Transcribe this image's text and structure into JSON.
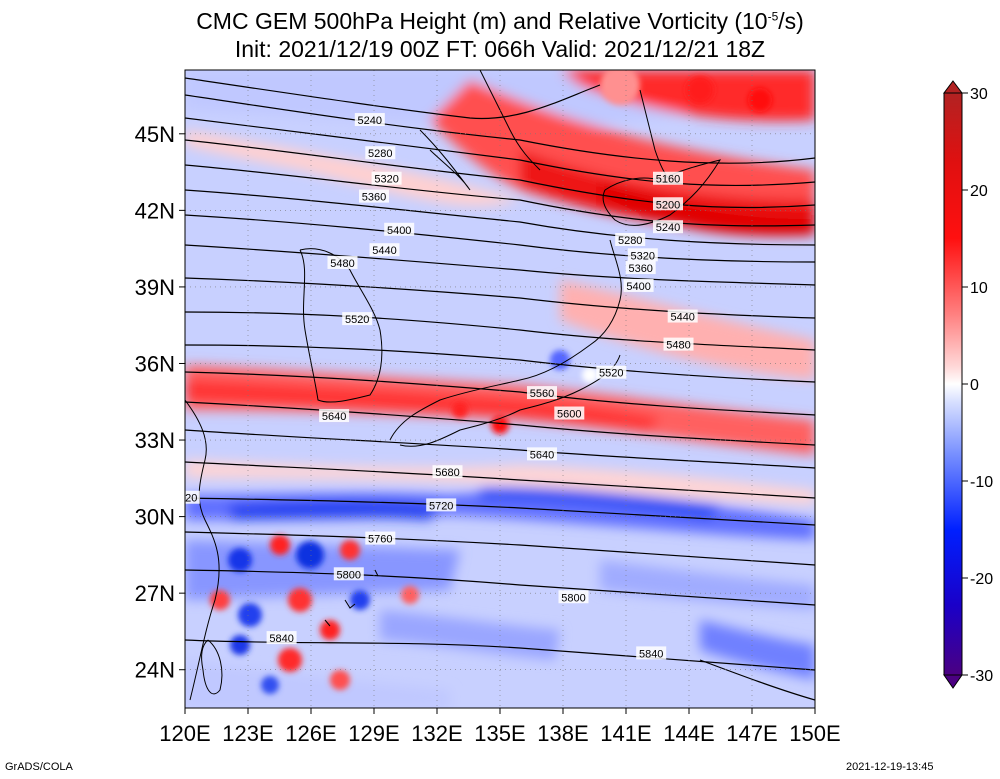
{
  "title": {
    "line1_pre": "CMC GEM 500hPa Height (m) and Relative Vorticity (10",
    "line1_exp": "-5",
    "line1_post": "/s)",
    "line2": "Init: 2021/12/19 00Z  FT: 066h  Valid: 2021/12/21 18Z"
  },
  "axes": {
    "lon_ticks": [
      "120E",
      "123E",
      "126E",
      "129E",
      "132E",
      "135E",
      "138E",
      "141E",
      "144E",
      "147E",
      "150E"
    ],
    "lat_ticks": [
      "45N",
      "42N",
      "39N",
      "36N",
      "33N",
      "30N",
      "27N",
      "24N"
    ],
    "lon_range": [
      120,
      150
    ],
    "lat_range": [
      22.5,
      47.5
    ]
  },
  "colorbar": {
    "ticks": [
      "30",
      "20",
      "10",
      "0",
      "-10",
      "-20",
      "-30"
    ],
    "range": [
      -30,
      30
    ],
    "colors": [
      "#4b0082",
      "#0000cd",
      "#3050ff",
      "#a0b4ff",
      "#ffffff",
      "#ffa0a0",
      "#ff2020",
      "#d20000",
      "#b22222"
    ]
  },
  "contours": {
    "labels": [
      {
        "text": "5240",
        "lon": 128.8,
        "lat": 45.5
      },
      {
        "text": "5280",
        "lon": 129.3,
        "lat": 44.2
      },
      {
        "text": "5320",
        "lon": 129.6,
        "lat": 43.2
      },
      {
        "text": "5360",
        "lon": 129.0,
        "lat": 42.5
      },
      {
        "text": "5400",
        "lon": 130.2,
        "lat": 41.2
      },
      {
        "text": "5440",
        "lon": 129.5,
        "lat": 40.4
      },
      {
        "text": "5480",
        "lon": 127.5,
        "lat": 39.9
      },
      {
        "text": "5520",
        "lon": 128.2,
        "lat": 37.7
      },
      {
        "text": "5160",
        "lon": 143.0,
        "lat": 43.2
      },
      {
        "text": "5200",
        "lon": 143.0,
        "lat": 42.2
      },
      {
        "text": "5240",
        "lon": 143.0,
        "lat": 41.3
      },
      {
        "text": "5280",
        "lon": 141.2,
        "lat": 40.8
      },
      {
        "text": "5320",
        "lon": 141.8,
        "lat": 40.2
      },
      {
        "text": "5360",
        "lon": 141.7,
        "lat": 39.7
      },
      {
        "text": "5400",
        "lon": 141.6,
        "lat": 39.0
      },
      {
        "text": "5440",
        "lon": 143.7,
        "lat": 37.8
      },
      {
        "text": "5480",
        "lon": 143.5,
        "lat": 36.7
      },
      {
        "text": "5520",
        "lon": 140.3,
        "lat": 35.6
      },
      {
        "text": "5560",
        "lon": 137.0,
        "lat": 34.8
      },
      {
        "text": "5600",
        "lon": 138.3,
        "lat": 34.0
      },
      {
        "text": "5640",
        "lon": 127.1,
        "lat": 33.9
      },
      {
        "text": "5640",
        "lon": 137.0,
        "lat": 32.4
      },
      {
        "text": "5680",
        "lon": 132.5,
        "lat": 31.7
      },
      {
        "text": "5720",
        "lon": 132.2,
        "lat": 30.4
      },
      {
        "text": "5760",
        "lon": 129.3,
        "lat": 29.1
      },
      {
        "text": "5800",
        "lon": 127.8,
        "lat": 27.7
      },
      {
        "text": "5800",
        "lon": 138.5,
        "lat": 26.8
      },
      {
        "text": "5840",
        "lon": 124.6,
        "lat": 25.2
      },
      {
        "text": "5840",
        "lon": 142.2,
        "lat": 24.6
      },
      {
        "text": "20",
        "lon": 120.3,
        "lat": 30.7
      }
    ]
  },
  "footer": {
    "left": "GrADS/COLA",
    "right": "2021-12-19-13:45"
  }
}
